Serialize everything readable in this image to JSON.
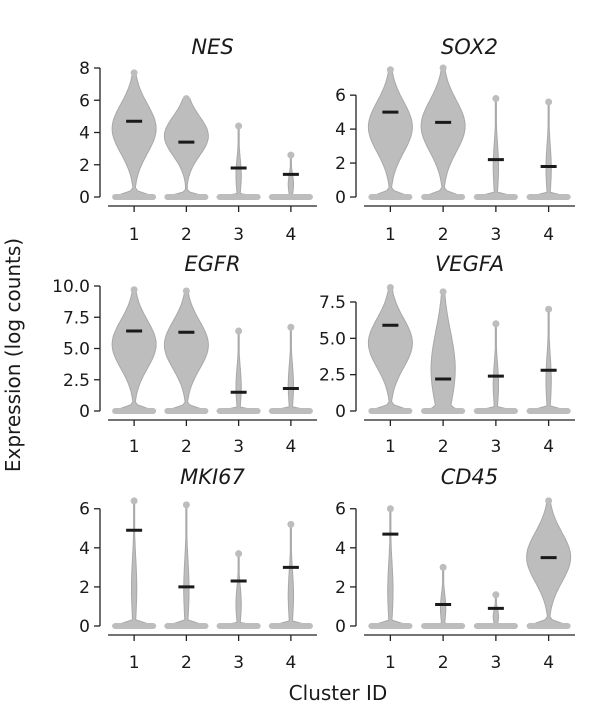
{
  "figure": {
    "ylabel": "Expression (log counts)",
    "xlabel": "Cluster ID"
  },
  "colors": {
    "violin": "#bdbdbd",
    "median": "#1a1a1a",
    "axis": "#222222"
  },
  "chart_data": [
    {
      "type": "violin",
      "title": "NES",
      "categories": [
        "1",
        "2",
        "3",
        "4"
      ],
      "medians": [
        4.7,
        3.4,
        1.8,
        1.4
      ],
      "max": [
        7.7,
        6.1,
        4.4,
        2.6
      ],
      "ylim": [
        0,
        8
      ],
      "yticks": [
        0,
        2,
        4,
        6,
        8
      ]
    },
    {
      "type": "violin",
      "title": "SOX2",
      "categories": [
        "1",
        "2",
        "3",
        "4"
      ],
      "medians": [
        5.0,
        4.4,
        2.2,
        1.8
      ],
      "max": [
        7.5,
        7.6,
        5.8,
        5.6
      ],
      "ylim": [
        0,
        7.6
      ],
      "yticks": [
        0,
        2,
        4,
        6
      ]
    },
    {
      "type": "violin",
      "title": "EGFR",
      "categories": [
        "1",
        "2",
        "3",
        "4"
      ],
      "medians": [
        6.4,
        6.3,
        1.5,
        1.8
      ],
      "max": [
        9.7,
        9.6,
        6.4,
        6.7
      ],
      "ylim": [
        0,
        10
      ],
      "yticks": [
        0,
        2.5,
        5,
        7.5,
        10
      ],
      "yticklabels": [
        "0",
        "2.5",
        "5.0",
        "7.5",
        "10.0"
      ]
    },
    {
      "type": "violin",
      "title": "VEGFA",
      "categories": [
        "1",
        "2",
        "3",
        "4"
      ],
      "medians": [
        5.9,
        2.2,
        2.4,
        2.8
      ],
      "max": [
        8.5,
        8.2,
        6.0,
        7.0
      ],
      "ylim": [
        0,
        8.6
      ],
      "yticks": [
        0,
        2.5,
        5,
        7.5
      ],
      "yticklabels": [
        "0",
        "2.5",
        "5.0",
        "7.5"
      ]
    },
    {
      "type": "violin",
      "title": "MKI67",
      "categories": [
        "1",
        "2",
        "3",
        "4"
      ],
      "medians": [
        4.9,
        2.0,
        2.3,
        3.0
      ],
      "max": [
        6.4,
        6.2,
        3.7,
        5.2
      ],
      "ylim": [
        0,
        6.6
      ],
      "yticks": [
        0,
        2,
        4,
        6
      ]
    },
    {
      "type": "violin",
      "title": "CD45",
      "categories": [
        "1",
        "2",
        "3",
        "4"
      ],
      "medians": [
        4.7,
        1.1,
        0.9,
        3.5
      ],
      "max": [
        6.0,
        3.0,
        1.6,
        6.4
      ],
      "ylim": [
        0,
        6.6
      ],
      "yticks": [
        0,
        2,
        4,
        6
      ]
    }
  ]
}
